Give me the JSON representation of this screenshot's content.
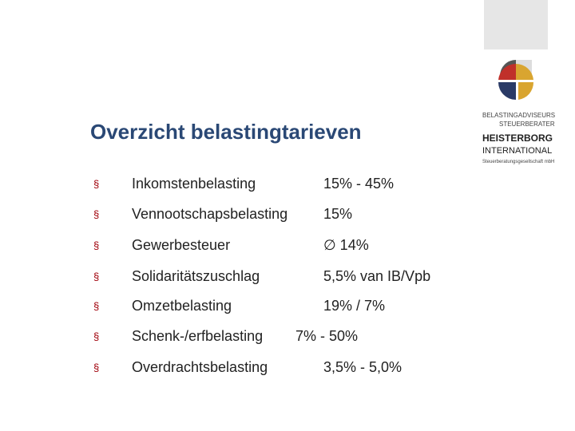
{
  "slide": {
    "title": "Overzicht belastingtarieven",
    "bullet_symbol": "§",
    "items": [
      {
        "label": "Inkomstenbelasting",
        "value": "15% - 45%"
      },
      {
        "label": "Vennootschapsbelasting",
        "value": "15%"
      },
      {
        "label": "Gewerbesteuer",
        "value": "∅  14%"
      },
      {
        "label": "Solidaritätszuschlag",
        "value": "5,5% van IB/Vpb"
      },
      {
        "label": "Omzetbelasting",
        "value": "19% / 7%"
      },
      {
        "label": "Schenk-/erfbelasting",
        "value": "7% - 50%"
      },
      {
        "label": "Overdrachtsbelasting",
        "value": "3,5% - 5,0%"
      }
    ]
  },
  "logo": {
    "line1": "BELASTINGADVISEURS",
    "line2": "STEUERBERATER",
    "name1": "HEISTERBORG",
    "name2": "INTERNATIONAL",
    "tagline": "Steuerberatungsgesellschaft mbH"
  }
}
